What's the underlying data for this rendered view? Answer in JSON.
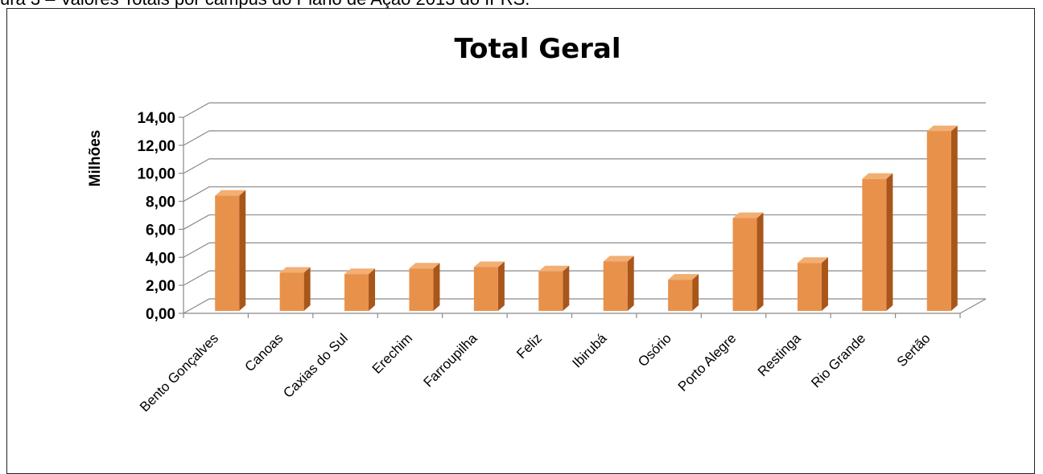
{
  "caption": "ura 3 – Valores Totais por campus do Plano de Ação 2013 do IFRS.",
  "chart_data": {
    "type": "bar",
    "title": "Total Geral",
    "xlabel": "",
    "ylabel": "Milhões",
    "ylim": [
      0,
      14
    ],
    "yticks": [
      "0,00",
      "2,00",
      "4,00",
      "6,00",
      "8,00",
      "10,00",
      "12,00",
      "14,00"
    ],
    "categories": [
      "Bento Gonçalves",
      "Canoas",
      "Caxias do Sul",
      "Erechim",
      "Farroupilha",
      "Feliz",
      "Ibirubá",
      "Osório",
      "Porto Alegre",
      "Restinga",
      "Rio Grande",
      "Sertão"
    ],
    "values": [
      8.4,
      2.9,
      2.8,
      3.2,
      3.3,
      3.0,
      3.7,
      2.4,
      6.8,
      3.6,
      9.6,
      13.0
    ],
    "grid": true,
    "legend": "none",
    "colors": {
      "bar_front": "#E8914A",
      "bar_side": "#A8561A",
      "bar_top": "#F2AE73",
      "grid": "#8a8a8a"
    }
  }
}
